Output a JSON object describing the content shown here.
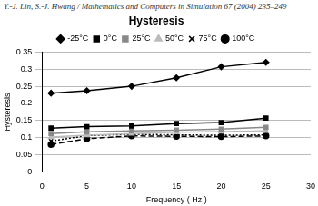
{
  "page_header": "Y.-J. Lin, S.-J. Hwang / Mathematics and Computers in Simulation 67 (2004) 235–249",
  "chart_data": {
    "type": "line",
    "title": "Hysteresis",
    "x_label": "Frequency ( Hz )",
    "y_label": "Hysteresis",
    "x": [
      1,
      5,
      10,
      15,
      20,
      25
    ],
    "xlim": [
      0,
      30
    ],
    "xticks": [
      0,
      5,
      10,
      15,
      20,
      25,
      30
    ],
    "ylim": [
      0,
      0.35
    ],
    "yticks": [
      0,
      0.05,
      0.1,
      0.15,
      0.2,
      0.25,
      0.3,
      0.35
    ],
    "grid": "y",
    "legend": "top",
    "series": [
      {
        "name": "-25°C",
        "color": "#000000",
        "marker": "diamond",
        "line_style": "solid",
        "values": [
          0.23,
          0.237,
          0.25,
          0.275,
          0.307,
          0.32
        ]
      },
      {
        "name": "0°C",
        "color": "#000000",
        "marker": "square",
        "line_style": "solid",
        "values": [
          0.128,
          0.132,
          0.134,
          0.141,
          0.144,
          0.157
        ]
      },
      {
        "name": "25°C",
        "color": "#888888",
        "marker": "square",
        "line_style": "solid",
        "values": [
          0.112,
          0.117,
          0.12,
          0.122,
          0.125,
          0.13
        ]
      },
      {
        "name": "50°C",
        "color": "#bbbbbb",
        "marker": "triangle",
        "line_style": "solid",
        "values": [
          0.102,
          0.107,
          0.112,
          0.116,
          0.118,
          0.12
        ]
      },
      {
        "name": "75°C",
        "color": "#000000",
        "marker": "cross",
        "line_style": "dotted",
        "values": [
          0.09,
          0.106,
          0.11,
          0.108,
          0.107,
          0.108
        ]
      },
      {
        "name": "100°C",
        "color": "#000000",
        "marker": "circle",
        "line_style": "dashed",
        "values": [
          0.08,
          0.097,
          0.105,
          0.104,
          0.103,
          0.105
        ]
      }
    ]
  }
}
